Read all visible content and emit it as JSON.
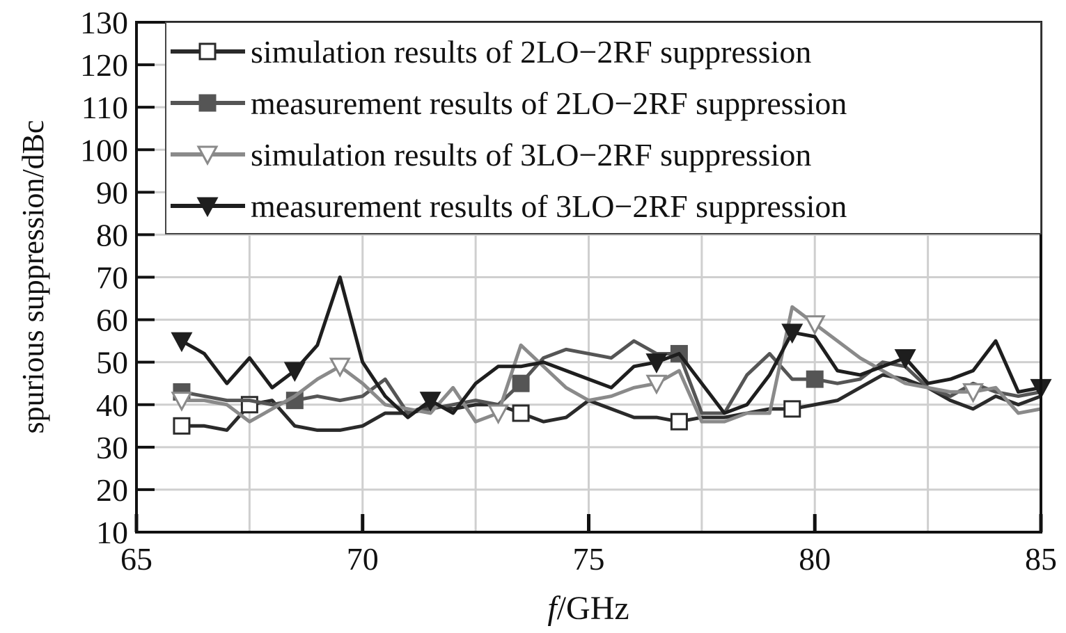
{
  "chart_data": {
    "type": "line",
    "title": "",
    "xlabel_italic": "f",
    "xlabel_rest": "/GHz",
    "ylabel": "spurious suppression/dBc",
    "xlim": [
      65,
      85
    ],
    "ylim": [
      10,
      130
    ],
    "xticks": [
      65,
      70,
      75,
      80,
      85
    ],
    "yticks": [
      10,
      20,
      30,
      40,
      50,
      60,
      70,
      80,
      90,
      100,
      110,
      120,
      130
    ],
    "grid": true,
    "legend_position": "top",
    "series": [
      {
        "name": "simulation results of 2LO−2RF suppression",
        "color": "#2a2a2a",
        "marker": "square-open",
        "markers_at": [
          0,
          3,
          15,
          22,
          27
        ],
        "x": [
          66,
          66.5,
          67,
          67.5,
          68,
          68.5,
          69,
          69.5,
          70,
          70.5,
          71,
          71.5,
          72,
          72.5,
          73,
          73.5,
          74,
          74.5,
          75,
          75.5,
          76,
          76.5,
          77,
          77.5,
          78,
          78.5,
          79,
          79.5,
          80,
          80.5,
          81,
          81.5,
          82,
          82.5,
          83,
          83.5,
          84,
          84.5,
          85
        ],
        "values": [
          35,
          35,
          34,
          40,
          41,
          35,
          34,
          34,
          35,
          38,
          38,
          40,
          39,
          40,
          40,
          38,
          36,
          37,
          41,
          39,
          37,
          37,
          36,
          37,
          37,
          38,
          39,
          39,
          40,
          41,
          44,
          47,
          46,
          44,
          41,
          39,
          42,
          40,
          42
        ]
      },
      {
        "name": "measurement results of 2LO−2RF suppression",
        "color": "#555555",
        "marker": "square-filled",
        "markers_at": [
          0,
          5,
          15,
          22,
          28
        ],
        "x": [
          66,
          66.5,
          67,
          67.5,
          68,
          68.5,
          69,
          69.5,
          70,
          70.5,
          71,
          71.5,
          72,
          72.5,
          73,
          73.5,
          74,
          74.5,
          75,
          75.5,
          76,
          76.5,
          77,
          77.5,
          78,
          78.5,
          79,
          79.5,
          80,
          80.5,
          81,
          81.5,
          82,
          82.5,
          83,
          83.5,
          84,
          84.5,
          85
        ],
        "values": [
          43,
          42,
          41,
          41,
          40,
          41,
          42,
          41,
          42,
          46,
          38,
          39,
          40,
          41,
          40,
          45,
          51,
          53,
          52,
          51,
          55,
          52,
          52,
          38,
          38,
          47,
          52,
          46,
          46,
          45,
          46,
          50,
          49,
          44,
          42,
          45,
          43,
          42,
          43
        ]
      },
      {
        "name": "simulation results of 3LO−2RF suppression",
        "color": "#8a8a8a",
        "marker": "triangle-open",
        "markers_at": [
          0,
          7,
          14,
          21,
          28,
          35
        ],
        "x": [
          66,
          66.5,
          67,
          67.5,
          68,
          68.5,
          69,
          69.5,
          70,
          70.5,
          71,
          71.5,
          72,
          72.5,
          73,
          73.5,
          74,
          74.5,
          75,
          75.5,
          76,
          76.5,
          77,
          77.5,
          78,
          78.5,
          79,
          79.5,
          80,
          80.5,
          81,
          81.5,
          82,
          82.5,
          83,
          83.5,
          84,
          84.5,
          85
        ],
        "values": [
          41,
          41,
          40,
          36,
          39,
          42,
          46,
          49,
          45,
          40,
          39,
          38,
          44,
          36,
          38,
          54,
          49,
          44,
          41,
          42,
          44,
          45,
          48,
          36,
          36,
          38,
          38,
          63,
          59,
          55,
          51,
          48,
          45,
          44,
          43,
          43,
          44,
          38,
          39
        ]
      },
      {
        "name": "measurement results of 3LO−2RF suppression",
        "color": "#1e1e1e",
        "marker": "triangle-filled",
        "markers_at": [
          0,
          5,
          11,
          21,
          27,
          32,
          38
        ],
        "x": [
          66,
          66.5,
          67,
          67.5,
          68,
          68.5,
          69,
          69.5,
          70,
          70.5,
          71,
          71.5,
          72,
          72.5,
          73,
          73.5,
          74,
          74.5,
          75,
          75.5,
          76,
          76.5,
          77,
          77.5,
          78,
          78.5,
          79,
          79.5,
          80,
          80.5,
          81,
          81.5,
          82,
          82.5,
          83,
          83.5,
          84,
          84.5,
          85
        ],
        "x_fix": [
          66,
          66.5,
          67,
          67.5,
          68,
          68.5,
          69,
          69.5,
          70,
          70.5,
          71,
          71.5,
          72,
          72.5,
          73,
          73.5,
          74,
          74.5,
          75,
          75.5,
          76,
          76.5,
          77,
          77.5,
          78,
          78.5,
          79,
          79.5,
          80,
          80.5,
          81,
          81.5,
          82,
          82.5,
          83,
          83.5,
          84,
          84.5,
          85
        ],
        "values": [
          55,
          52,
          45,
          51,
          44,
          48,
          54,
          70,
          50,
          42,
          37,
          41,
          38,
          45,
          49,
          49,
          50,
          48,
          46,
          44,
          49,
          50,
          52,
          45,
          38,
          40,
          47,
          57,
          56,
          48,
          47,
          49,
          51,
          45,
          46,
          48,
          55,
          43,
          44
        ]
      }
    ]
  }
}
